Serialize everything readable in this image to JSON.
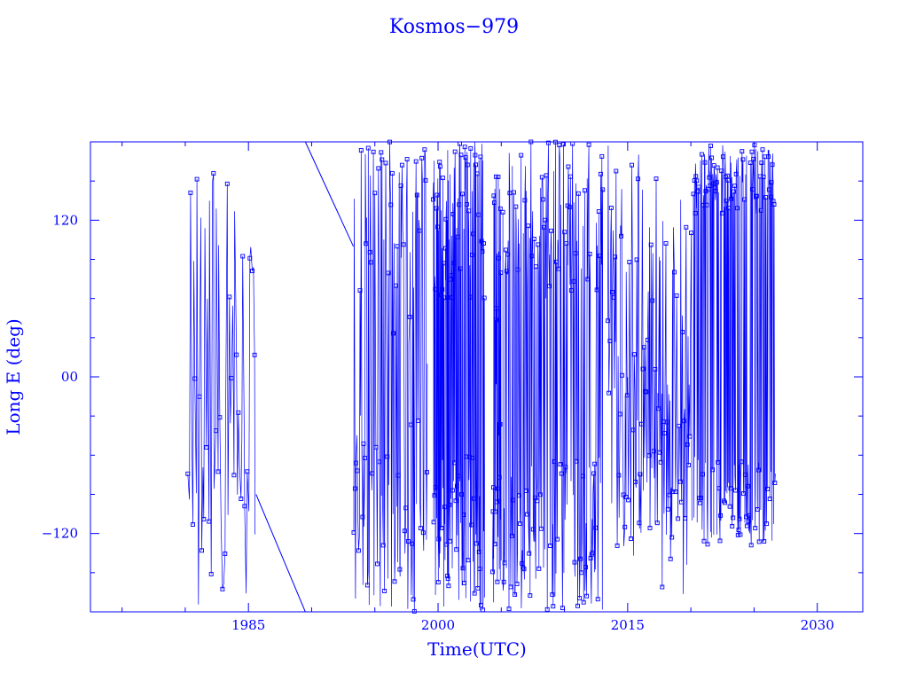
{
  "chart_data": {
    "type": "scatter",
    "title": "Kosmos−979",
    "xlabel": "Time(UTC)",
    "ylabel": "Long E (deg)",
    "xlim": [
      1972.5,
      2033.6
    ],
    "ylim": [
      -180,
      180
    ],
    "x_ticks": [
      1985,
      2000,
      2015,
      2030
    ],
    "x_tick_labels": [
      "1985",
      "2000",
      "2015",
      "2030"
    ],
    "y_ticks": [
      120,
      0,
      -120
    ],
    "y_tick_labels": [
      "120",
      "00",
      "−120"
    ],
    "color": "#0000ff",
    "marker": "square",
    "lines_connected": true,
    "grid": false,
    "segments": [
      {
        "start": 1980.2,
        "end": 1985.6,
        "bands": [
          [
            -180,
            180
          ]
        ],
        "density": 60
      },
      {
        "start": 1993.3,
        "end": 1999.2,
        "bands": [
          [
            -180,
            180
          ],
          [
            60,
            180
          ],
          [
            -180,
            -50
          ]
        ],
        "density": 120
      },
      {
        "start": 1999.6,
        "end": 2003.7,
        "bands": [
          [
            60,
            180
          ],
          [
            -180,
            -60
          ]
        ],
        "density": 160
      },
      {
        "start": 2004.3,
        "end": 2005.0,
        "bands": [
          [
            -180,
            180
          ]
        ],
        "density": 40
      },
      {
        "start": 2005.1,
        "end": 2013.1,
        "bands": [
          [
            60,
            180
          ],
          [
            -180,
            -60
          ]
        ],
        "density": 200
      },
      {
        "start": 2013.4,
        "end": 2020.1,
        "bands": [
          [
            -130,
            40
          ],
          [
            -180,
            180
          ]
        ],
        "density": 140
      },
      {
        "start": 2020.2,
        "end": 2026.7,
        "bands": [
          [
            125,
            180
          ],
          [
            -130,
            -60
          ]
        ],
        "density": 200
      }
    ],
    "drift_lines": [
      {
        "x": [
          1985.6,
          1989.5
        ],
        "y": [
          -90,
          -180
        ]
      },
      {
        "x": [
          1989.5,
          1993.3
        ],
        "y": [
          180,
          100
        ]
      }
    ]
  }
}
